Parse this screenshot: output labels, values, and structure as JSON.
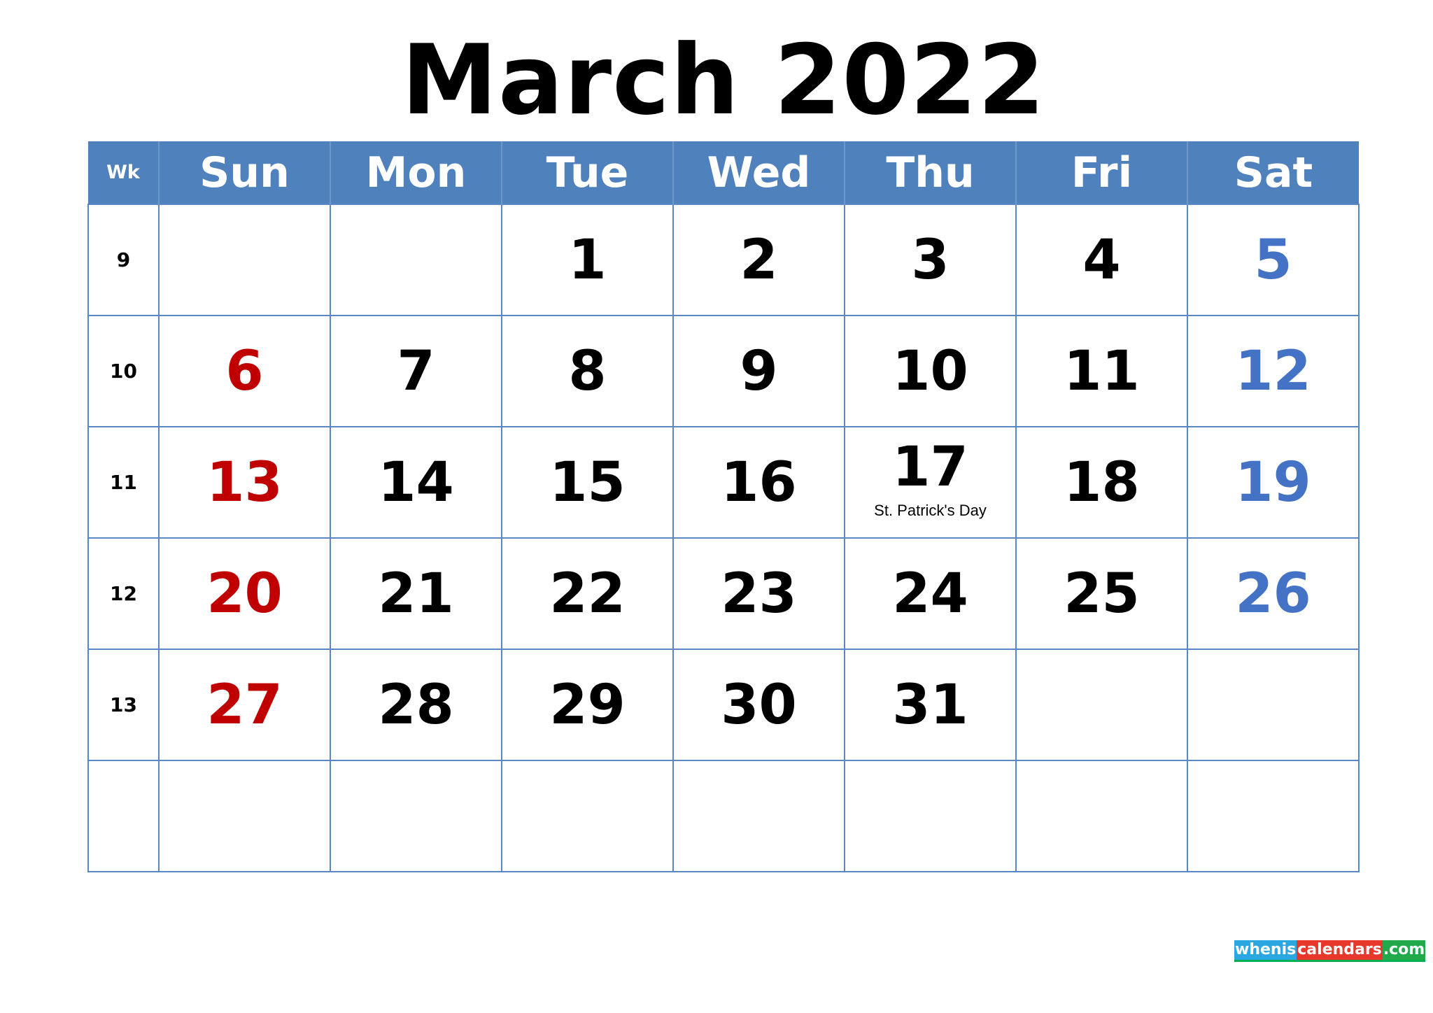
{
  "title": "March 2022",
  "header": {
    "wk_label": "Wk",
    "days": [
      "Sun",
      "Mon",
      "Tue",
      "Wed",
      "Thu",
      "Fri",
      "Sat"
    ]
  },
  "weeks": [
    {
      "wk": "9",
      "days": [
        "",
        "",
        "1",
        "2",
        "3",
        "4",
        "5"
      ]
    },
    {
      "wk": "10",
      "days": [
        "6",
        "7",
        "8",
        "9",
        "10",
        "11",
        "12"
      ]
    },
    {
      "wk": "11",
      "days": [
        "13",
        "14",
        "15",
        "16",
        "17",
        "18",
        "19"
      ]
    },
    {
      "wk": "12",
      "days": [
        "20",
        "21",
        "22",
        "23",
        "24",
        "25",
        "26"
      ]
    },
    {
      "wk": "13",
      "days": [
        "27",
        "28",
        "29",
        "30",
        "31",
        "",
        ""
      ]
    },
    {
      "wk": "",
      "days": [
        "",
        "",
        "",
        "",
        "",
        "",
        ""
      ]
    }
  ],
  "holidays": {
    "st_patricks": "St. Patrick's Day"
  },
  "watermark": {
    "part_a": "whenis",
    "part_b": "calendars",
    "part_c": ".com"
  },
  "colors": {
    "header_bg": "#4f81bd",
    "grid_line": "#5b86c4",
    "sunday": "#c00000",
    "saturday": "#4472c4",
    "weekday": "#000000"
  }
}
